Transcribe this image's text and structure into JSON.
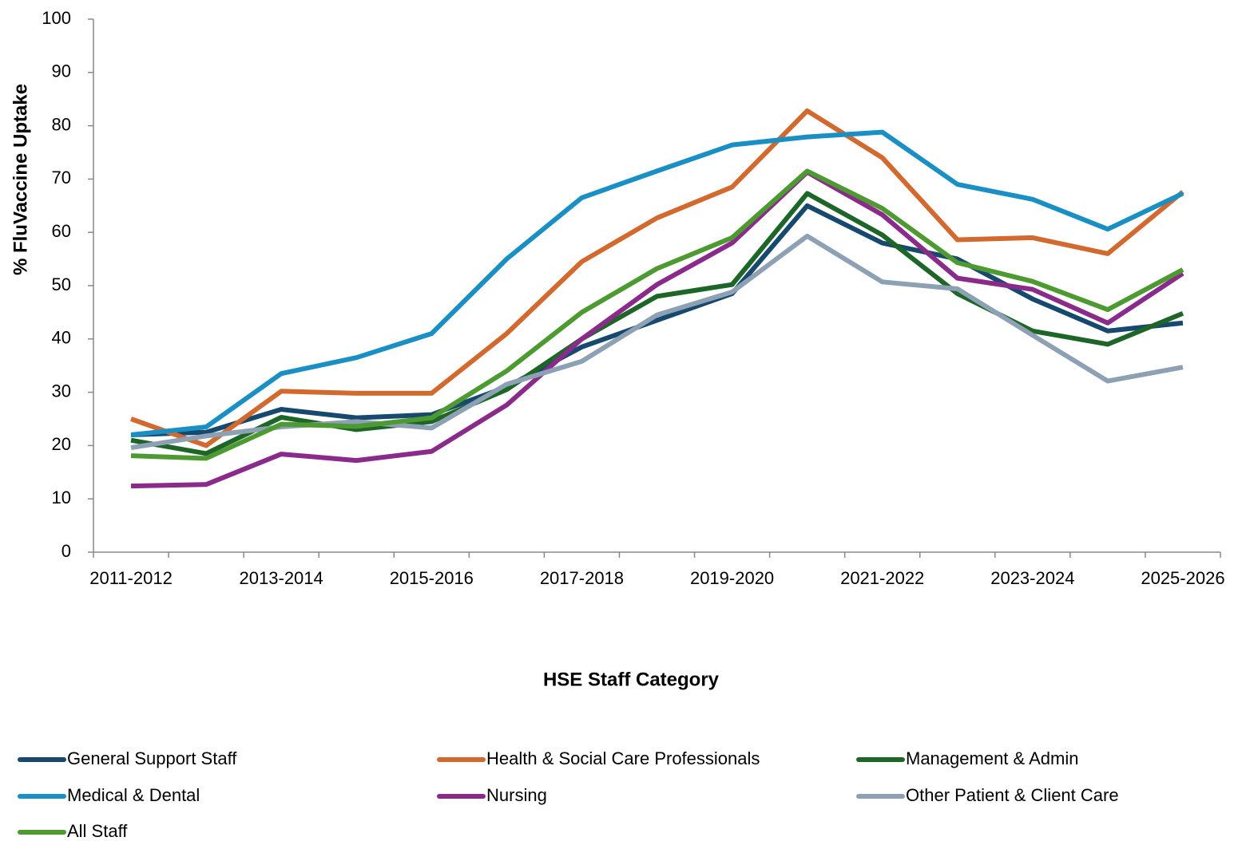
{
  "chart_data": {
    "type": "line",
    "x_label": "HSE Staff Category",
    "y_label": "% FluVaccine Uptake",
    "categories": [
      "2011-2012",
      null,
      "2013-2014",
      null,
      "2015-2016",
      null,
      "2017-2018",
      null,
      "2019-2020",
      null,
      "2021-2022",
      null,
      "2023-2024",
      null,
      "2025-2026"
    ],
    "ylim": [
      0,
      100
    ],
    "yticks": [
      0,
      10,
      20,
      30,
      40,
      50,
      60,
      70,
      80,
      90,
      100
    ],
    "grid": false,
    "legend": "bottom",
    "series": [
      {
        "name": "General Support Staff",
        "color": "#17496e",
        "values": [
          22.0,
          22.5,
          26.8,
          25.2,
          25.8,
          31,
          38.5,
          43.5,
          48.5,
          65,
          58,
          55,
          47.5,
          41.5,
          43
        ]
      },
      {
        "name": "Health & Social Care Professionals",
        "color": "#d2692f",
        "values": [
          25,
          20,
          30.2,
          29.8,
          29.8,
          41,
          54.5,
          62.7,
          68.5,
          82.8,
          74,
          58.6,
          59,
          56,
          67.6
        ]
      },
      {
        "name": "Management & Admin",
        "color": "#1e6628",
        "values": [
          21,
          18.5,
          25.3,
          23,
          24.5,
          30.5,
          40,
          48,
          50.2,
          67.3,
          59.5,
          48.5,
          41.5,
          39,
          44.8
        ]
      },
      {
        "name": "Medical & Dental",
        "color": "#1a8fc4",
        "values": [
          22,
          23.5,
          33.5,
          36.5,
          41,
          55,
          66.5,
          71.5,
          76.4,
          77.9,
          78.8,
          69,
          66.2,
          60.6,
          67.3
        ]
      },
      {
        "name": "Nursing",
        "color": "#8a2a8a",
        "values": [
          12.4,
          12.7,
          18.4,
          17.2,
          18.9,
          27.6,
          40,
          50.2,
          58,
          71.3,
          63.3,
          51.4,
          49.3,
          43,
          52.3
        ]
      },
      {
        "name": "Other Patient & Client Care",
        "color": "#8da0b4",
        "values": [
          19.6,
          21.8,
          23.5,
          24.5,
          23.3,
          31.5,
          35.8,
          44.5,
          48.8,
          59.3,
          50.7,
          49.4,
          40.7,
          32.1,
          34.7
        ]
      },
      {
        "name": "All Staff",
        "color": "#4e9a32",
        "values": [
          18.1,
          17.6,
          24,
          23.6,
          25.2,
          34,
          45,
          53.2,
          59,
          71.5,
          64.5,
          54.3,
          50.8,
          45.5,
          53
        ]
      }
    ]
  }
}
